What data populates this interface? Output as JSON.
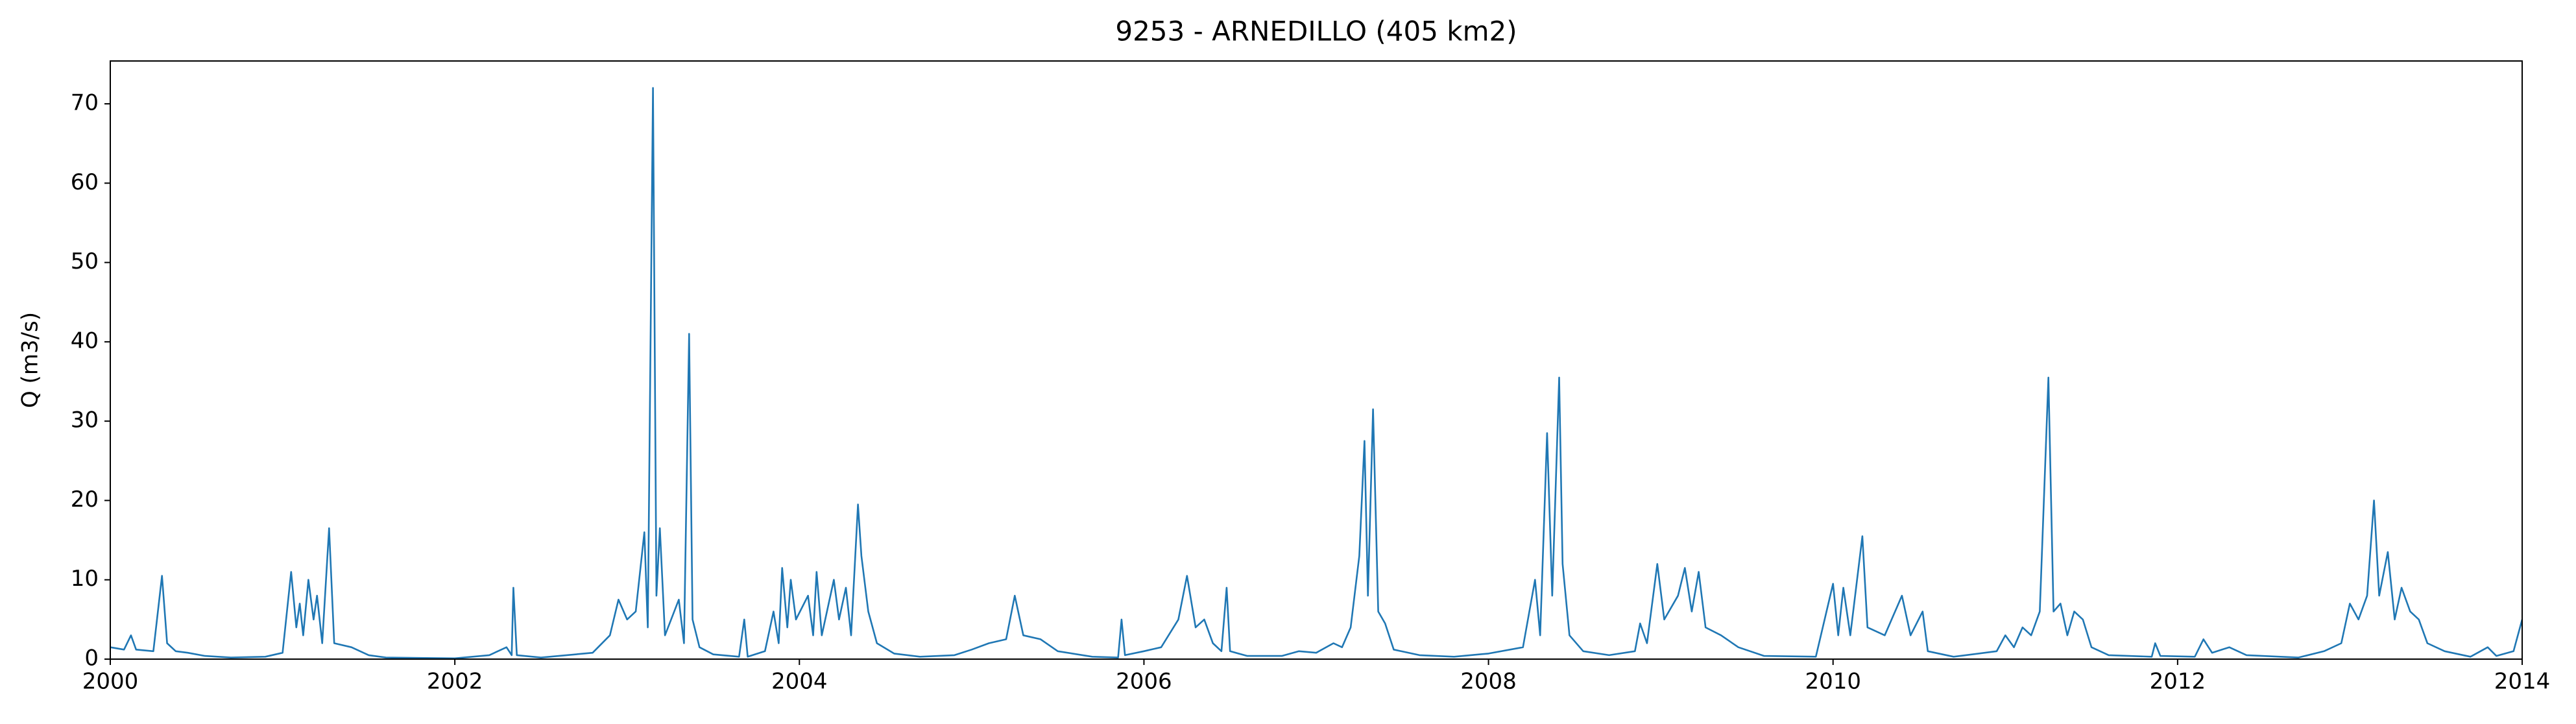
{
  "chart_data": {
    "type": "line",
    "title": "9253 - ARNEDILLO (405 km2)",
    "y_label": "Q (m3/s)",
    "xlim": [
      2000,
      2014
    ],
    "xticks": [
      2000,
      2002,
      2004,
      2006,
      2008,
      2010,
      2012,
      2014
    ],
    "ylim": [
      0,
      75.4
    ],
    "yticks": [
      0,
      10,
      20,
      30,
      40,
      50,
      60,
      70
    ],
    "grid": false,
    "series": [
      {
        "color": "#1f77b4",
        "x": [
          2000.0,
          2000.08,
          2000.12,
          2000.15,
          2000.25,
          2000.3,
          2000.33,
          2000.38,
          2000.45,
          2000.55,
          2000.7,
          2000.9,
          2001.0,
          2001.05,
          2001.08,
          2001.1,
          2001.12,
          2001.15,
          2001.18,
          2001.2,
          2001.23,
          2001.27,
          2001.3,
          2001.4,
          2001.5,
          2001.6,
          2002.0,
          2002.2,
          2002.3,
          2002.33,
          2002.34,
          2002.36,
          2002.5,
          2002.8,
          2002.9,
          2002.95,
          2003.0,
          2003.05,
          2003.1,
          2003.12,
          2003.15,
          2003.17,
          2003.19,
          2003.22,
          2003.3,
          2003.33,
          2003.36,
          2003.38,
          2003.42,
          2003.5,
          2003.65,
          2003.68,
          2003.7,
          2003.8,
          2003.85,
          2003.88,
          2003.9,
          2003.93,
          2003.95,
          2003.98,
          2004.05,
          2004.08,
          2004.1,
          2004.13,
          2004.2,
          2004.23,
          2004.27,
          2004.3,
          2004.34,
          2004.36,
          2004.4,
          2004.45,
          2004.55,
          2004.7,
          2004.9,
          2005.0,
          2005.1,
          2005.2,
          2005.25,
          2005.3,
          2005.4,
          2005.5,
          2005.7,
          2005.85,
          2005.87,
          2005.89,
          2006.0,
          2006.1,
          2006.2,
          2006.25,
          2006.3,
          2006.35,
          2006.4,
          2006.45,
          2006.48,
          2006.5,
          2006.6,
          2006.8,
          2006.9,
          2007.0,
          2007.1,
          2007.15,
          2007.2,
          2007.25,
          2007.28,
          2007.3,
          2007.33,
          2007.36,
          2007.4,
          2007.45,
          2007.6,
          2007.8,
          2008.0,
          2008.2,
          2008.27,
          2008.3,
          2008.34,
          2008.37,
          2008.41,
          2008.43,
          2008.47,
          2008.55,
          2008.7,
          2008.85,
          2008.88,
          2008.92,
          2008.98,
          2009.02,
          2009.1,
          2009.14,
          2009.18,
          2009.22,
          2009.26,
          2009.35,
          2009.45,
          2009.6,
          2009.9,
          2010.0,
          2010.03,
          2010.06,
          2010.1,
          2010.17,
          2010.2,
          2010.3,
          2010.4,
          2010.45,
          2010.52,
          2010.55,
          2010.7,
          2010.95,
          2011.0,
          2011.05,
          2011.1,
          2011.15,
          2011.2,
          2011.25,
          2011.28,
          2011.32,
          2011.36,
          2011.4,
          2011.45,
          2011.5,
          2011.6,
          2011.85,
          2011.87,
          2011.9,
          2012.1,
          2012.15,
          2012.2,
          2012.3,
          2012.4,
          2012.7,
          2012.85,
          2012.95,
          2013.0,
          2013.05,
          2013.1,
          2013.14,
          2013.17,
          2013.22,
          2013.26,
          2013.3,
          2013.35,
          2013.4,
          2013.45,
          2013.55,
          2013.7,
          2013.8,
          2013.85,
          2013.95,
          2014.0
        ],
        "values": [
          1.5,
          1.2,
          3.0,
          1.2,
          1.0,
          10.5,
          2,
          1.0,
          0.8,
          0.4,
          0.2,
          0.3,
          0.8,
          11,
          4,
          7,
          3,
          10,
          5,
          8,
          2,
          16.5,
          2,
          1.5,
          0.5,
          0.2,
          0.1,
          0.5,
          1.5,
          0.5,
          9,
          0.5,
          0.2,
          0.8,
          3,
          7.5,
          5,
          6,
          16,
          4,
          72,
          8,
          16.5,
          3,
          7.5,
          2,
          41,
          5,
          1.5,
          0.6,
          0.3,
          5,
          0.3,
          1,
          6,
          2,
          11.5,
          4,
          10,
          5,
          8,
          3,
          11,
          3,
          10,
          5,
          9,
          3,
          19.5,
          13,
          6,
          2,
          0.7,
          0.3,
          0.5,
          1.2,
          2,
          2.5,
          8,
          3,
          2.5,
          1,
          0.3,
          0.2,
          5,
          0.5,
          1,
          1.5,
          5,
          10.5,
          4,
          5,
          2,
          1,
          9,
          1,
          0.4,
          0.4,
          1,
          0.8,
          2,
          1.5,
          4,
          13,
          27.5,
          8,
          31.5,
          6,
          4.5,
          1.2,
          0.5,
          0.3,
          0.7,
          1.5,
          10,
          3,
          28.5,
          8,
          35.5,
          12,
          3,
          1,
          0.5,
          1,
          4.5,
          2,
          12,
          5,
          8,
          11.5,
          6,
          11,
          4,
          3,
          1.5,
          0.4,
          0.3,
          9.5,
          3,
          9,
          3,
          15.5,
          4,
          3,
          8,
          3,
          6,
          1,
          0.3,
          1,
          3,
          1.5,
          4,
          3,
          6,
          35.5,
          6,
          7,
          3,
          6,
          5,
          1.5,
          0.5,
          0.3,
          2,
          0.4,
          0.3,
          2.5,
          0.8,
          1.5,
          0.5,
          0.2,
          1,
          2,
          7,
          5,
          8,
          20,
          8,
          13.5,
          5,
          9,
          6,
          5,
          2,
          1,
          0.3,
          1.5,
          0.4,
          1,
          5
        ]
      }
    ]
  }
}
